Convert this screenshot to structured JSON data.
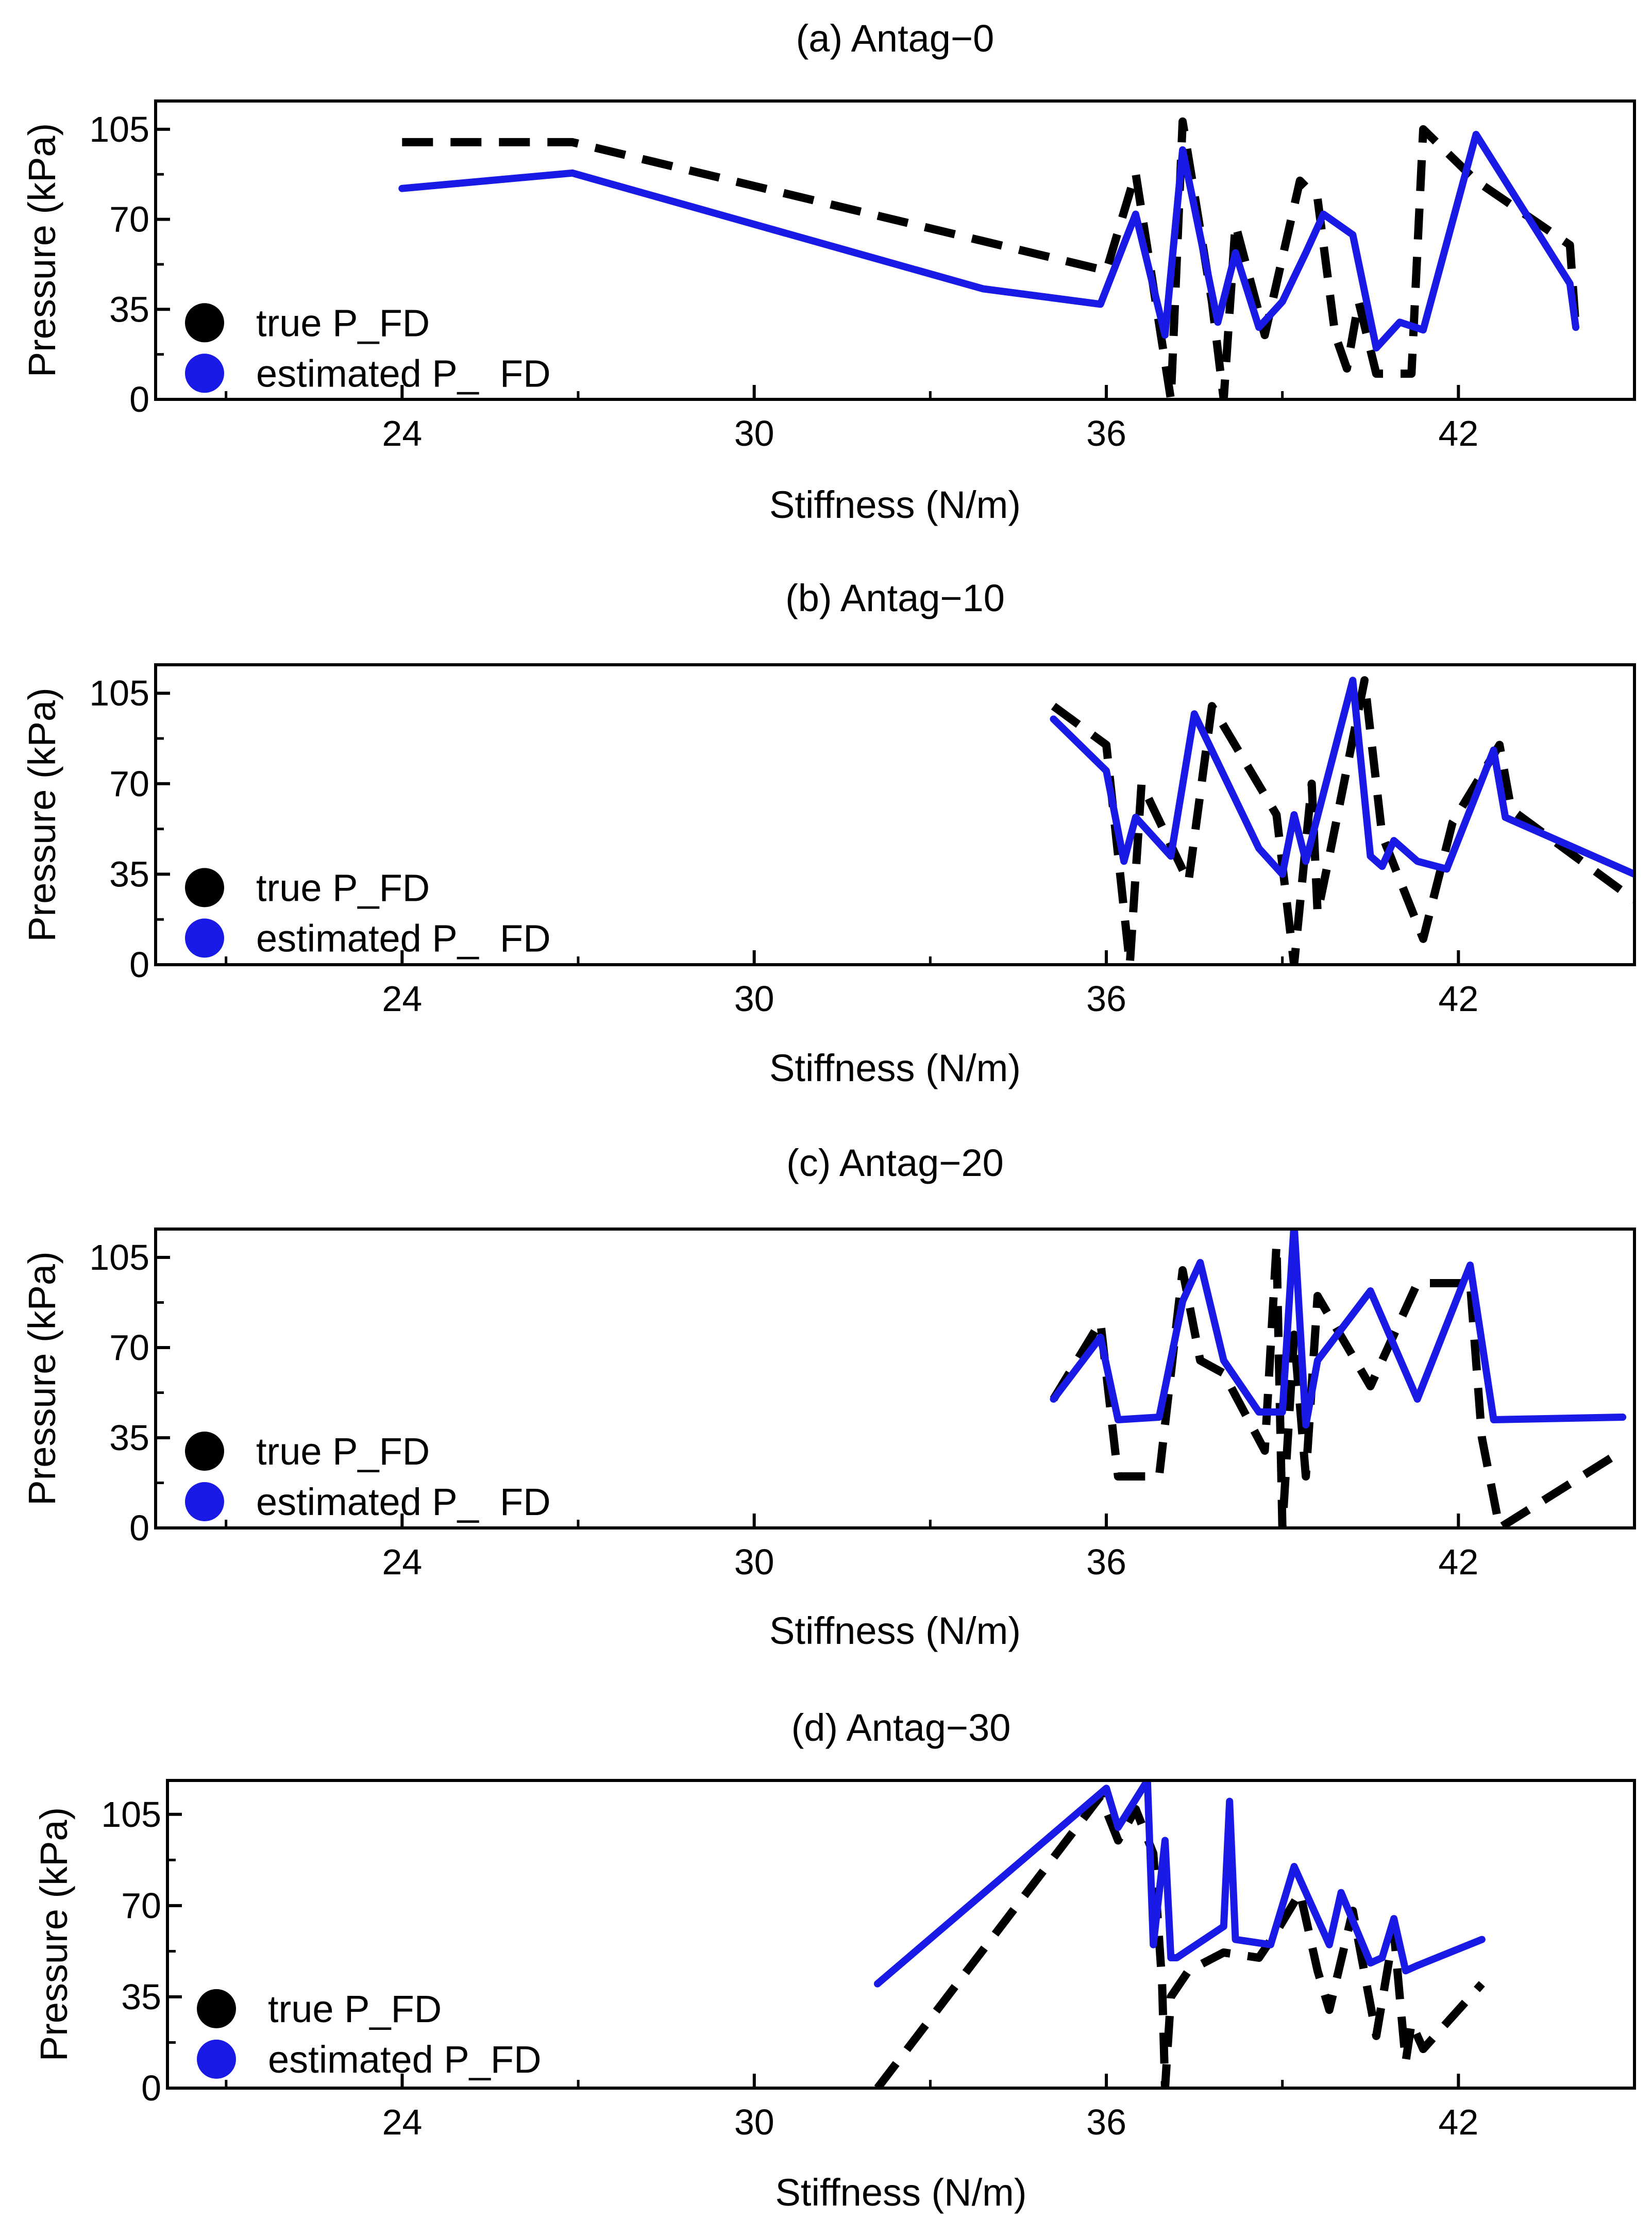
{
  "figure": {
    "colors": {
      "true": "#000000",
      "estimated": "#1a1ae6"
    },
    "line_styles": {
      "true": "dashed",
      "estimated": "solid"
    }
  },
  "chart_data": [
    {
      "type": "line",
      "title": "(a) Antag−0",
      "xlabel": "Stiffness (N/m)",
      "ylabel": "Pressure (kPa)",
      "xlim": [
        19.8,
        45.0
      ],
      "ylim": [
        0,
        116
      ],
      "xticks": [
        24,
        30,
        36,
        42
      ],
      "yticks": [
        0,
        35,
        70,
        105
      ],
      "x_minor_ticks": [
        21,
        27,
        33,
        39
      ],
      "y_minor_ticks": [
        17.5,
        52.5,
        87.5
      ],
      "grid": false,
      "legend": {
        "position": "lower-left",
        "entries": [
          "true P_FD",
          "estimated P_  FD"
        ]
      },
      "series": [
        {
          "name": "true P_FD",
          "style": "dashed",
          "x": [
            24,
            26.9,
            36,
            36.5,
            37.1,
            37.3,
            37.8,
            38.0,
            38.2,
            38.7,
            39.3,
            39.6,
            39.9,
            40.1,
            40.3,
            40.6,
            41.2,
            41.4,
            42.3,
            43.9,
            44.0
          ],
          "y": [
            100,
            100,
            50,
            88,
            0,
            108,
            38,
            0,
            68,
            25,
            85,
            78,
            25,
            12,
            38,
            10,
            10,
            105,
            85,
            60,
            28
          ]
        },
        {
          "name": "estimated P_  FD",
          "style": "solid",
          "x": [
            24,
            26.9,
            33.9,
            35.9,
            36.5,
            37.0,
            37.3,
            37.9,
            38.2,
            38.6,
            39.0,
            39.4,
            39.7,
            40.2,
            40.6,
            41.0,
            41.4,
            42.3,
            43.9,
            44.0
          ],
          "y": [
            82,
            88,
            43,
            37,
            72,
            25,
            97,
            30,
            57,
            28,
            38,
            57,
            72,
            64,
            20,
            30,
            27,
            103,
            45,
            28
          ]
        }
      ]
    },
    {
      "type": "line",
      "title": "(b) Antag−10",
      "xlabel": "Stiffness (N/m)",
      "ylabel": "Pressure (kPa)",
      "xlim": [
        19.8,
        45.0
      ],
      "ylim": [
        0,
        116
      ],
      "xticks": [
        24,
        30,
        36,
        42
      ],
      "yticks": [
        0,
        35,
        70,
        105
      ],
      "x_minor_ticks": [
        21,
        27,
        33,
        39
      ],
      "y_minor_ticks": [
        17.5,
        52.5,
        87.5
      ],
      "grid": false,
      "legend": {
        "position": "lower-left",
        "entries": [
          "true P_FD",
          "estimated P_  FD"
        ]
      },
      "series": [
        {
          "name": "true P_FD",
          "style": "dashed",
          "x": [
            35.1,
            36.0,
            36.4,
            36.6,
            37.4,
            37.8,
            38.9,
            39.2,
            39.5,
            39.6,
            39.8,
            40.4,
            40.7,
            41.4,
            41.9,
            42.7,
            42.9,
            45.0
          ],
          "y": [
            100,
            85,
            0,
            70,
            32,
            100,
            58,
            0,
            70,
            20,
            42,
            110,
            50,
            10,
            55,
            85,
            60,
            25
          ]
        },
        {
          "name": "estimated P_  FD",
          "style": "solid",
          "x": [
            35.1,
            36.0,
            36.3,
            36.5,
            37.1,
            37.5,
            38.6,
            39.0,
            39.2,
            39.4,
            40.2,
            40.5,
            40.7,
            40.9,
            41.3,
            41.8,
            42.6,
            42.8,
            45.0
          ],
          "y": [
            95,
            75,
            40,
            57,
            42,
            97,
            45,
            35,
            58,
            40,
            110,
            42,
            38,
            48,
            40,
            37,
            83,
            57,
            35
          ]
        }
      ]
    },
    {
      "type": "line",
      "title": "(c) Antag−20",
      "xlabel": "Stiffness (N/m)",
      "ylabel": "Pressure (kPa)",
      "xlim": [
        19.8,
        45.0
      ],
      "ylim": [
        0,
        116
      ],
      "xticks": [
        24,
        30,
        36,
        42
      ],
      "yticks": [
        0,
        35,
        70,
        105
      ],
      "x_minor_ticks": [
        21,
        27,
        33,
        39
      ],
      "y_minor_ticks": [
        17.5,
        52.5,
        87.5
      ],
      "grid": false,
      "legend": {
        "position": "lower-left",
        "entries": [
          "true P_FD",
          "estimated P_  FD"
        ]
      },
      "series": [
        {
          "name": "true P_FD",
          "style": "dashed",
          "x": [
            35.1,
            35.9,
            36.2,
            36.9,
            37.3,
            37.6,
            38.0,
            38.7,
            38.9,
            39.0,
            39.2,
            39.4,
            39.6,
            40.5,
            41.3,
            42.2,
            42.4,
            42.7,
            44.8
          ],
          "y": [
            50,
            80,
            20,
            20,
            100,
            65,
            60,
            30,
            110,
            0,
            75,
            20,
            90,
            55,
            95,
            95,
            35,
            0,
            30
          ]
        },
        {
          "name": "estimated P_  FD",
          "style": "solid",
          "x": [
            35.1,
            35.9,
            36.2,
            36.9,
            37.3,
            37.6,
            38.0,
            38.6,
            39.0,
            39.2,
            39.4,
            39.6,
            40.5,
            41.3,
            42.2,
            42.6,
            44.8
          ],
          "y": [
            50,
            74,
            42,
            43,
            88,
            103,
            65,
            45,
            45,
            118,
            40,
            65,
            92,
            50,
            102,
            42,
            43
          ]
        }
      ]
    },
    {
      "type": "line",
      "title": "(d) Antag−30",
      "xlabel": "Stiffness (N/m)",
      "ylabel": "Pressure (kPa)",
      "xlim": [
        20.0,
        45.0
      ],
      "ylim": [
        0,
        118
      ],
      "xticks": [
        24,
        30,
        36,
        42
      ],
      "yticks": [
        0,
        35,
        70,
        105
      ],
      "x_minor_ticks": [
        21,
        27,
        33,
        39
      ],
      "y_minor_ticks": [
        17.5,
        52.5,
        87.5
      ],
      "grid": false,
      "legend": {
        "position": "lower-left",
        "entries": [
          "true P_FD",
          "estimated P_FD"
        ]
      },
      "series": [
        {
          "name": "true P_FD",
          "style": "dashed",
          "x": [
            32.1,
            35.9,
            36.2,
            36.5,
            36.8,
            36.95,
            37.0,
            37.1,
            37.4,
            38.0,
            38.6,
            38.9,
            39.3,
            39.6,
            39.8,
            40.2,
            40.6,
            40.9,
            41.1,
            41.2,
            41.4,
            42.4
          ],
          "y": [
            0,
            112,
            95,
            107,
            90,
            40,
            0,
            35,
            45,
            52,
            50,
            60,
            75,
            45,
            30,
            68,
            20,
            60,
            10,
            25,
            15,
            40
          ]
        },
        {
          "name": "estimated P_  FD",
          "style": "solid",
          "x": [
            32.1,
            36.0,
            36.2,
            36.7,
            36.8,
            37.0,
            37.1,
            37.2,
            38.0,
            38.1,
            38.2,
            38.8,
            39.2,
            39.8,
            40.0,
            40.5,
            40.7,
            40.9,
            41.1,
            41.3,
            42.4
          ],
          "y": [
            40,
            115,
            100,
            118,
            55,
            95,
            50,
            50,
            62,
            110,
            57,
            55,
            85,
            55,
            75,
            48,
            50,
            65,
            45,
            47,
            57
          ]
        }
      ]
    }
  ]
}
